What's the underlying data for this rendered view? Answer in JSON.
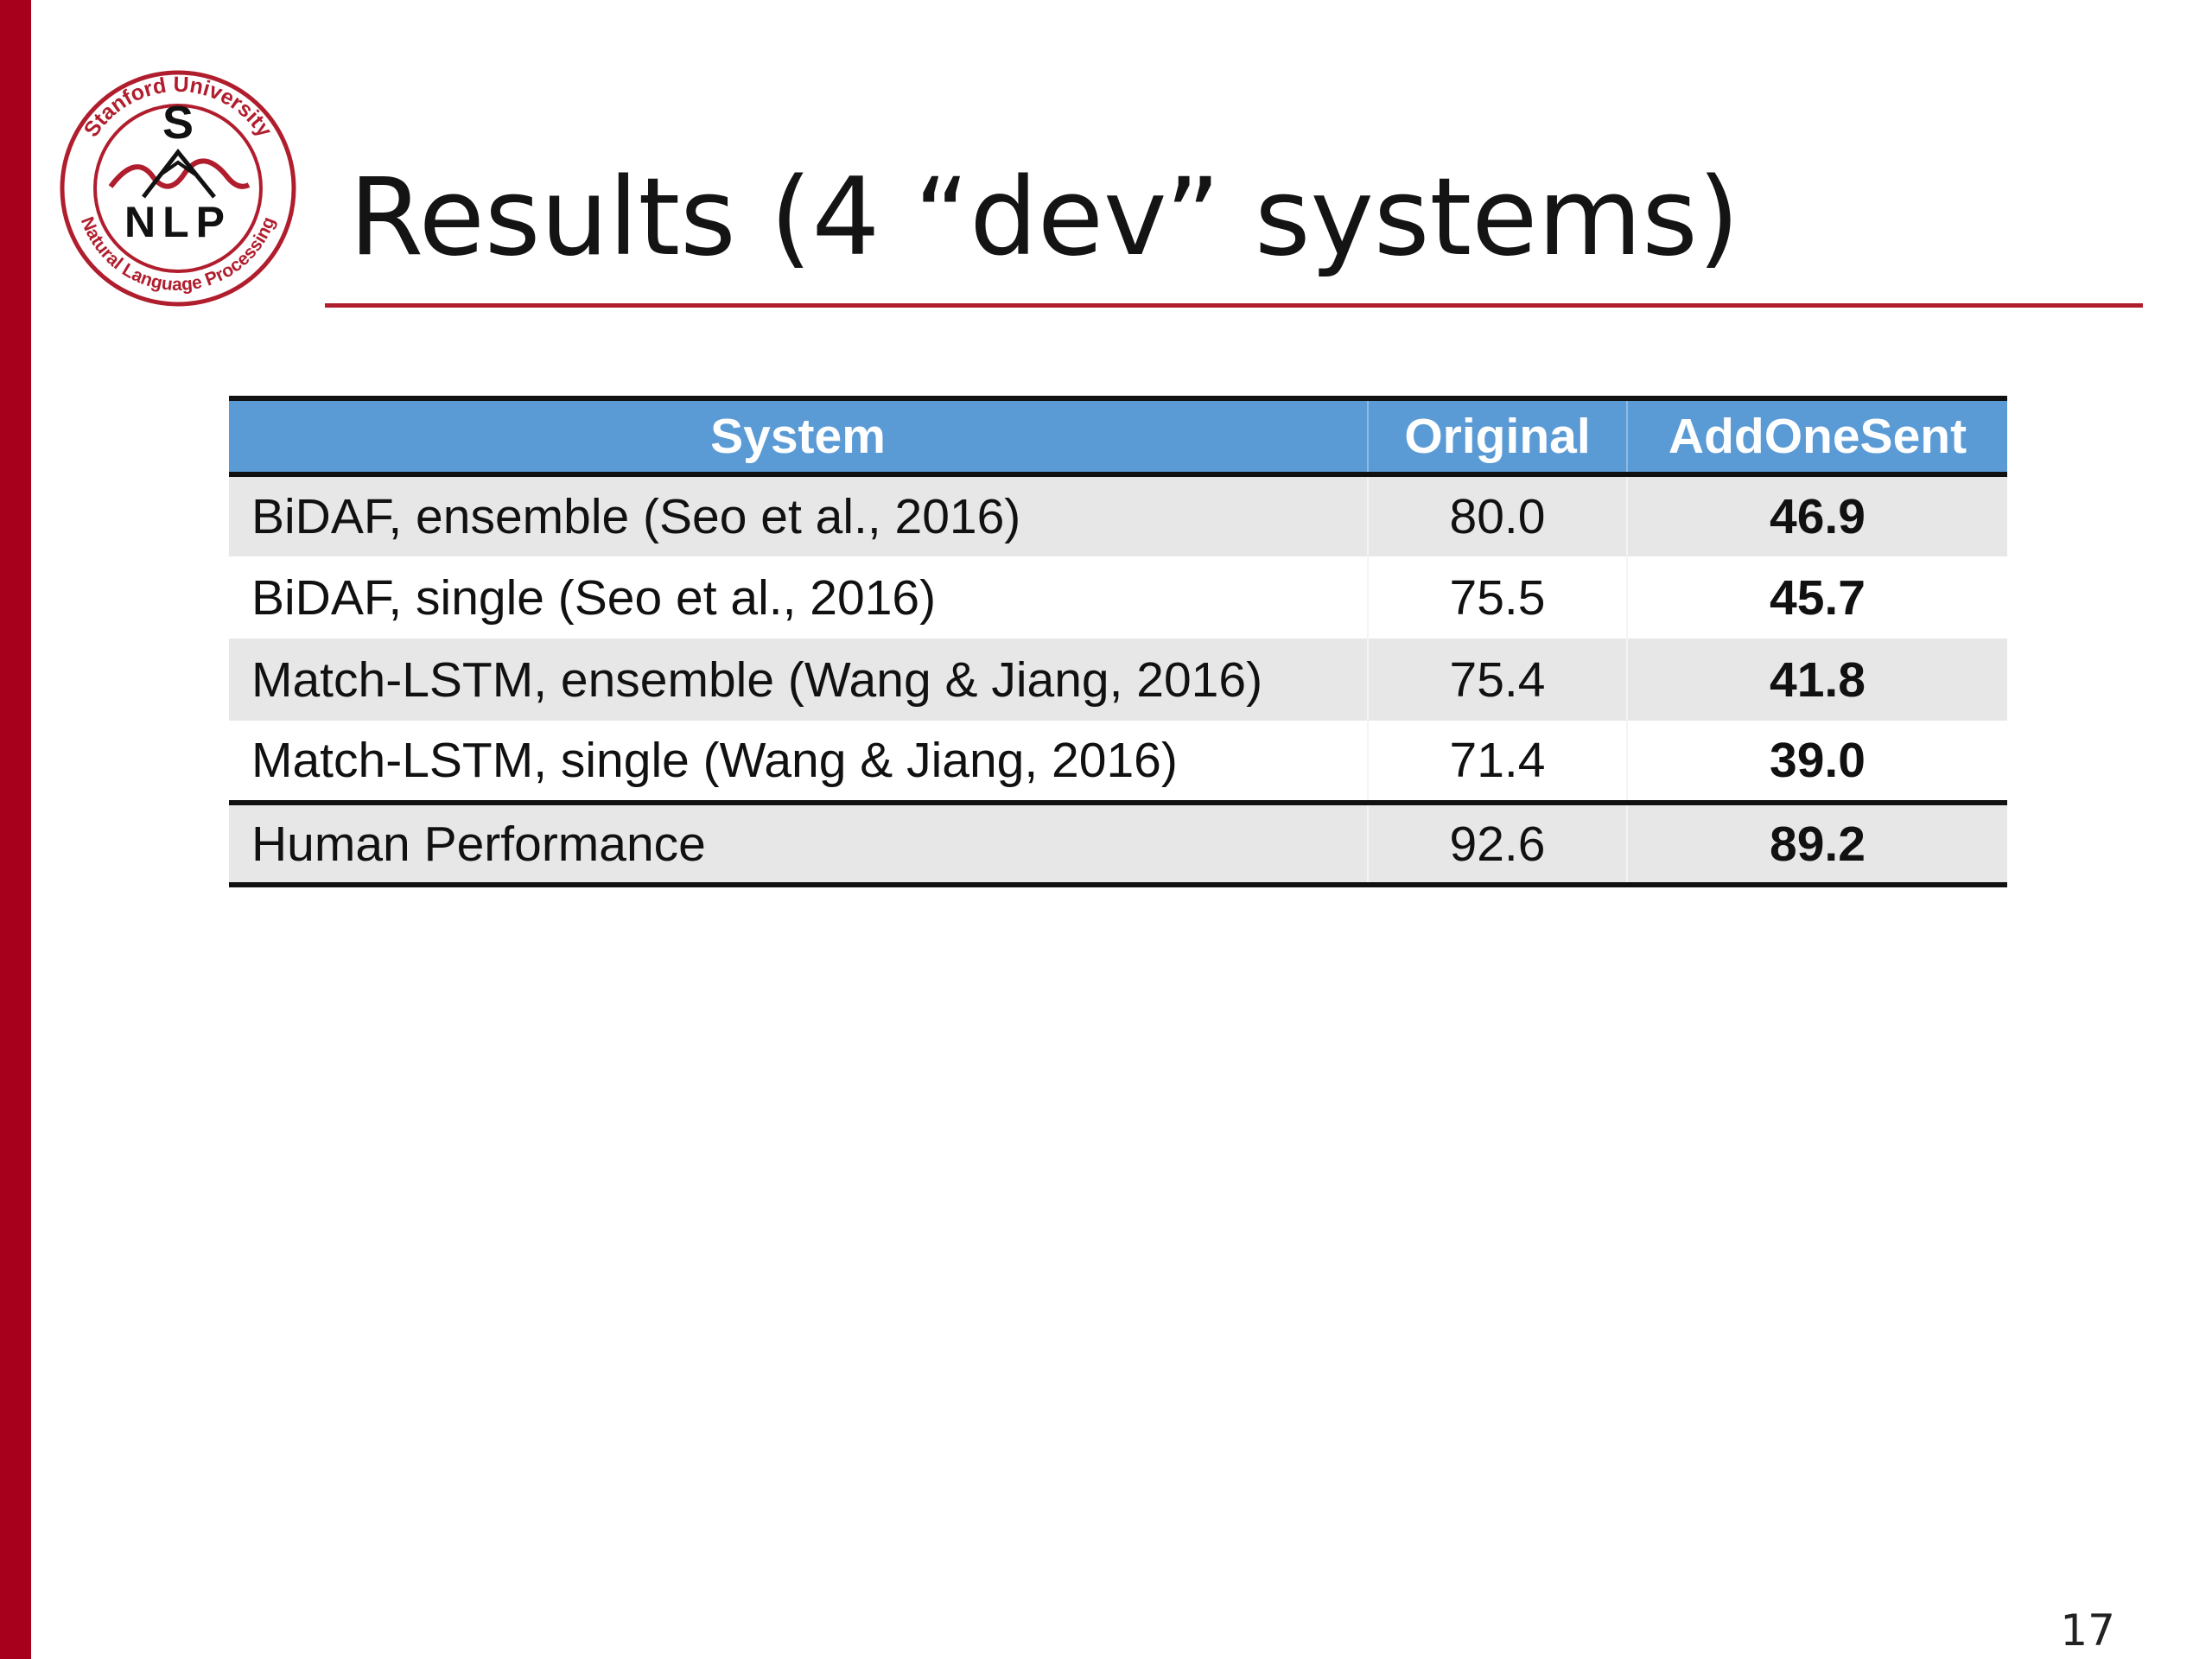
{
  "slide": {
    "title": "Results (4 “dev” systems)",
    "page_number": "17"
  },
  "logo": {
    "top_text": "Stanford University",
    "bottom_text": "Natural Language Processing",
    "letter_s": "S",
    "letters": "NLP",
    "icon": "stanford-nlp-logo-icon",
    "color": "#b01e2e"
  },
  "colors": {
    "accent_bar": "#a6001c",
    "header_fill": "#5b9bd5",
    "stripe_fill": "#e7e7e7"
  },
  "table": {
    "headers": [
      "System",
      "Original",
      "AddOneSent"
    ],
    "rows": [
      {
        "system": "BiDAF, ensemble (Seo et al., 2016)",
        "original": "80.0",
        "addonesent": "46.9"
      },
      {
        "system": "BiDAF, single (Seo et al., 2016)",
        "original": "75.5",
        "addonesent": "45.7"
      },
      {
        "system": "Match-LSTM, ensemble (Wang & Jiang, 2016)",
        "original": "75.4",
        "addonesent": "41.8"
      },
      {
        "system": "Match-LSTM, single (Wang & Jiang, 2016)",
        "original": "71.4",
        "addonesent": "39.0"
      },
      {
        "system": "Human Performance",
        "original": "92.6",
        "addonesent": "89.2"
      }
    ]
  }
}
